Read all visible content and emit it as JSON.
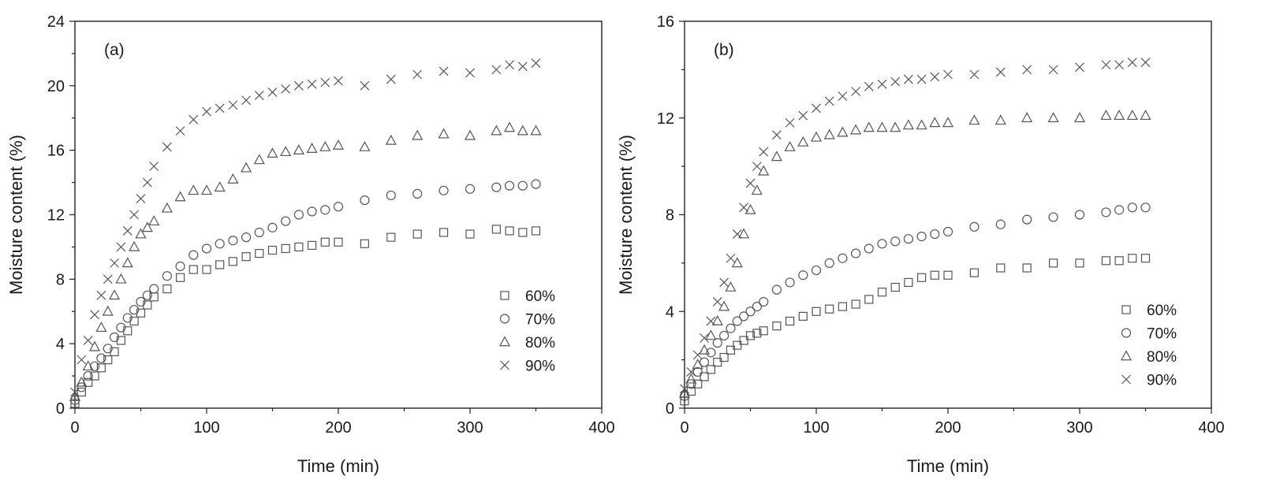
{
  "chart_data": [
    {
      "type": "scatter",
      "panel_label": "(a)",
      "xlabel": "Time (min)",
      "ylabel": "Moisture content (%)",
      "xlim": [
        0,
        400
      ],
      "ylim": [
        0,
        24
      ],
      "xticks": [
        "0",
        "100",
        "200",
        "300",
        "400"
      ],
      "yticks": [
        "0",
        "4",
        "8",
        "12",
        "16",
        "20",
        "24"
      ],
      "legend": [
        "60%",
        "70%",
        "80%",
        "90%"
      ],
      "legend_position": "bottom-right",
      "series": [
        {
          "name": "60%",
          "marker": "square",
          "x": [
            0,
            5,
            10,
            15,
            20,
            25,
            30,
            35,
            40,
            45,
            50,
            55,
            60,
            70,
            80,
            90,
            100,
            110,
            120,
            130,
            140,
            150,
            160,
            170,
            180,
            190,
            200,
            220,
            240,
            260,
            280,
            300,
            320,
            330,
            340,
            350
          ],
          "y": [
            0.3,
            1.0,
            1.6,
            2.0,
            2.5,
            3.0,
            3.5,
            4.2,
            4.8,
            5.4,
            5.9,
            6.4,
            6.9,
            7.4,
            8.1,
            8.6,
            8.6,
            8.9,
            9.1,
            9.4,
            9.6,
            9.8,
            9.9,
            10.0,
            10.1,
            10.3,
            10.3,
            10.2,
            10.6,
            10.8,
            10.9,
            10.8,
            11.1,
            11.0,
            10.9,
            11.0
          ]
        },
        {
          "name": "70%",
          "marker": "circle",
          "x": [
            0,
            5,
            10,
            15,
            20,
            25,
            30,
            35,
            40,
            45,
            50,
            55,
            60,
            70,
            80,
            90,
            100,
            110,
            120,
            130,
            140,
            150,
            160,
            170,
            180,
            190,
            200,
            220,
            240,
            260,
            280,
            300,
            320,
            330,
            340,
            350
          ],
          "y": [
            0.5,
            1.3,
            2.0,
            2.6,
            3.1,
            3.7,
            4.4,
            5.0,
            5.6,
            6.1,
            6.6,
            7.0,
            7.4,
            8.2,
            8.8,
            9.5,
            9.9,
            10.2,
            10.4,
            10.6,
            10.9,
            11.2,
            11.6,
            12.0,
            12.2,
            12.3,
            12.5,
            12.9,
            13.2,
            13.3,
            13.5,
            13.6,
            13.7,
            13.8,
            13.8,
            13.9
          ]
        },
        {
          "name": "80%",
          "marker": "triangle",
          "x": [
            0,
            5,
            10,
            15,
            20,
            25,
            30,
            35,
            40,
            45,
            50,
            55,
            60,
            70,
            80,
            90,
            100,
            110,
            120,
            130,
            140,
            150,
            160,
            170,
            180,
            190,
            200,
            220,
            240,
            260,
            280,
            300,
            320,
            330,
            340,
            350
          ],
          "y": [
            0.7,
            1.6,
            2.6,
            3.8,
            5.0,
            6.0,
            7.0,
            8.0,
            9.0,
            10.0,
            10.8,
            11.2,
            11.6,
            12.4,
            13.1,
            13.5,
            13.5,
            13.7,
            14.2,
            14.9,
            15.4,
            15.8,
            15.9,
            16.0,
            16.1,
            16.2,
            16.3,
            16.2,
            16.6,
            16.9,
            17.0,
            16.9,
            17.2,
            17.4,
            17.2,
            17.2
          ]
        },
        {
          "name": "90%",
          "marker": "cross",
          "x": [
            0,
            5,
            10,
            15,
            20,
            25,
            30,
            35,
            40,
            45,
            50,
            55,
            60,
            70,
            80,
            90,
            100,
            110,
            120,
            130,
            140,
            150,
            160,
            170,
            180,
            190,
            200,
            220,
            240,
            260,
            280,
            300,
            320,
            330,
            340,
            350
          ],
          "y": [
            1.0,
            3.0,
            4.2,
            5.8,
            7.0,
            8.0,
            9.0,
            10.0,
            11.0,
            12.0,
            13.0,
            14.0,
            15.0,
            16.2,
            17.2,
            17.9,
            18.4,
            18.6,
            18.8,
            19.1,
            19.4,
            19.6,
            19.8,
            20.0,
            20.1,
            20.2,
            20.3,
            20.0,
            20.4,
            20.7,
            20.9,
            20.8,
            21.0,
            21.3,
            21.2,
            21.4
          ]
        }
      ]
    },
    {
      "type": "scatter",
      "panel_label": "(b)",
      "xlabel": "Time (min)",
      "ylabel": "Moisture content (%)",
      "xlim": [
        0,
        400
      ],
      "ylim": [
        0,
        16
      ],
      "xticks": [
        "0",
        "100",
        "200",
        "300",
        "400"
      ],
      "yticks": [
        "0",
        "4",
        "8",
        "12",
        "16"
      ],
      "legend": [
        "60%",
        "70%",
        "80%",
        "90%"
      ],
      "legend_position": "bottom-right",
      "series": [
        {
          "name": "60%",
          "marker": "square",
          "x": [
            0,
            5,
            10,
            15,
            20,
            25,
            30,
            35,
            40,
            45,
            50,
            55,
            60,
            70,
            80,
            90,
            100,
            110,
            120,
            130,
            140,
            150,
            160,
            170,
            180,
            190,
            200,
            220,
            240,
            260,
            280,
            300,
            320,
            330,
            340,
            350
          ],
          "y": [
            0.3,
            0.7,
            1.0,
            1.3,
            1.6,
            1.9,
            2.1,
            2.4,
            2.6,
            2.8,
            3.0,
            3.1,
            3.2,
            3.4,
            3.6,
            3.8,
            4.0,
            4.1,
            4.2,
            4.3,
            4.5,
            4.8,
            5.0,
            5.2,
            5.4,
            5.5,
            5.5,
            5.6,
            5.8,
            5.8,
            6.0,
            6.0,
            6.1,
            6.1,
            6.2,
            6.2
          ]
        },
        {
          "name": "70%",
          "marker": "circle",
          "x": [
            0,
            5,
            10,
            15,
            20,
            25,
            30,
            35,
            40,
            45,
            50,
            55,
            60,
            70,
            80,
            90,
            100,
            110,
            120,
            130,
            140,
            150,
            160,
            170,
            180,
            190,
            200,
            220,
            240,
            260,
            280,
            300,
            320,
            330,
            340,
            350
          ],
          "y": [
            0.5,
            1.0,
            1.5,
            1.9,
            2.3,
            2.7,
            3.0,
            3.3,
            3.6,
            3.8,
            4.0,
            4.2,
            4.4,
            4.9,
            5.2,
            5.5,
            5.7,
            6.0,
            6.2,
            6.4,
            6.6,
            6.8,
            6.9,
            7.0,
            7.1,
            7.2,
            7.3,
            7.5,
            7.6,
            7.8,
            7.9,
            8.0,
            8.1,
            8.2,
            8.3,
            8.3
          ]
        },
        {
          "name": "80%",
          "marker": "triangle",
          "x": [
            0,
            5,
            10,
            15,
            20,
            25,
            30,
            35,
            40,
            45,
            50,
            55,
            60,
            70,
            80,
            90,
            100,
            110,
            120,
            130,
            140,
            150,
            160,
            170,
            180,
            190,
            200,
            220,
            240,
            260,
            280,
            300,
            320,
            330,
            340,
            350
          ],
          "y": [
            0.6,
            1.2,
            1.8,
            2.4,
            3.0,
            3.6,
            4.2,
            5.0,
            6.0,
            7.2,
            8.2,
            9.0,
            9.8,
            10.4,
            10.8,
            11.0,
            11.2,
            11.3,
            11.4,
            11.5,
            11.6,
            11.6,
            11.6,
            11.7,
            11.7,
            11.8,
            11.8,
            11.9,
            11.9,
            12.0,
            12.0,
            12.0,
            12.1,
            12.1,
            12.1,
            12.1
          ]
        },
        {
          "name": "90%",
          "marker": "cross",
          "x": [
            0,
            5,
            10,
            15,
            20,
            25,
            30,
            35,
            40,
            45,
            50,
            55,
            60,
            70,
            80,
            90,
            100,
            110,
            120,
            130,
            140,
            150,
            160,
            170,
            180,
            190,
            200,
            220,
            240,
            260,
            280,
            300,
            320,
            330,
            340,
            350
          ],
          "y": [
            0.8,
            1.5,
            2.2,
            2.9,
            3.6,
            4.4,
            5.2,
            6.2,
            7.2,
            8.3,
            9.3,
            10.0,
            10.6,
            11.3,
            11.8,
            12.1,
            12.4,
            12.7,
            12.9,
            13.1,
            13.3,
            13.4,
            13.5,
            13.6,
            13.6,
            13.7,
            13.8,
            13.8,
            13.9,
            14.0,
            14.0,
            14.1,
            14.2,
            14.2,
            14.3,
            14.3
          ]
        }
      ]
    }
  ]
}
